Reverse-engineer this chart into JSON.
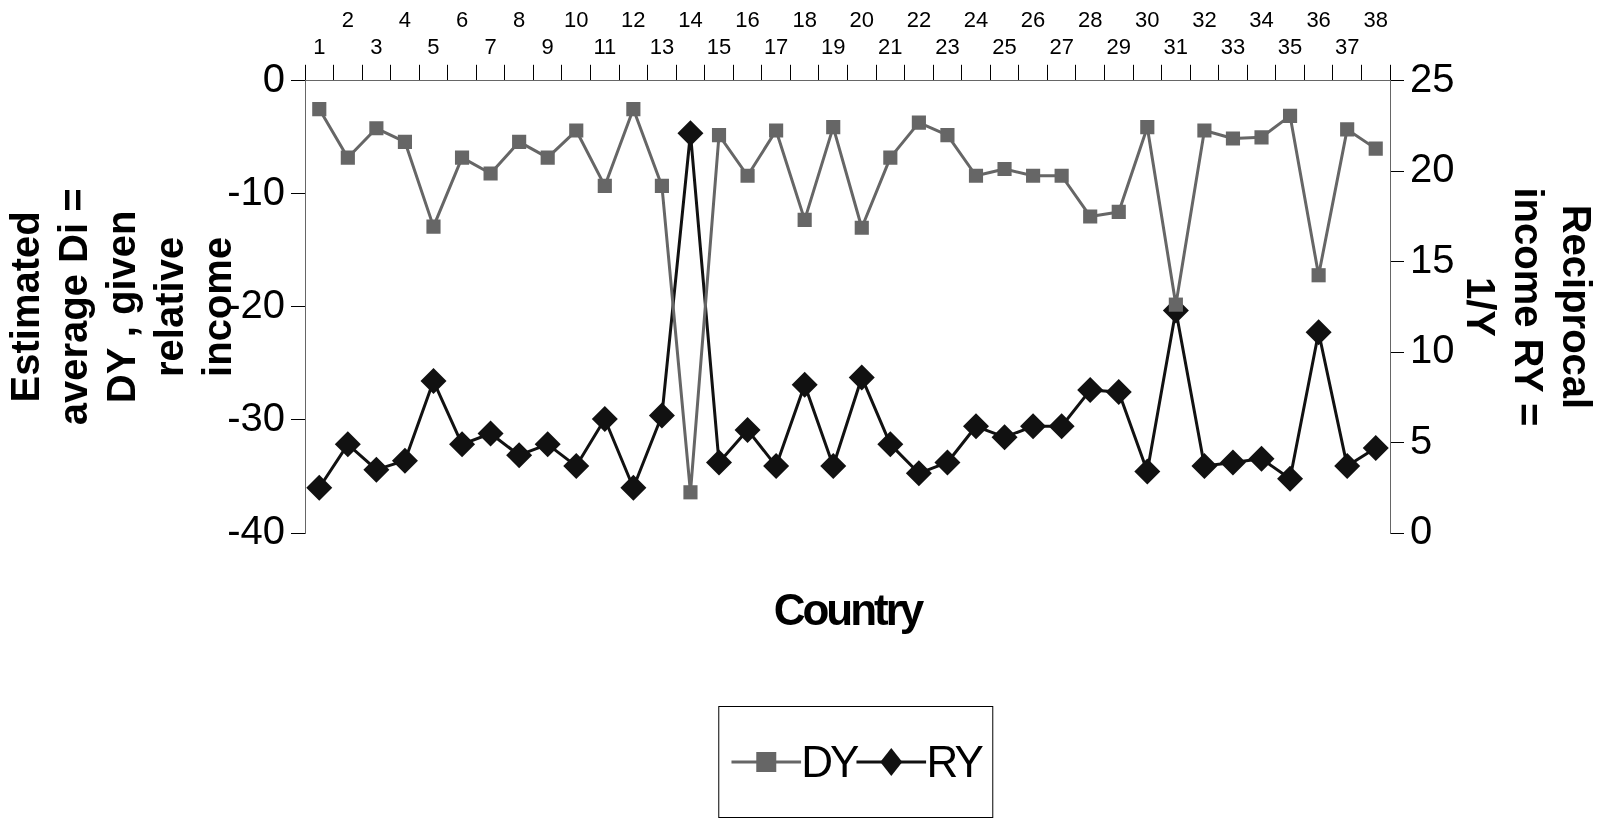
{
  "chart_data": {
    "type": "line",
    "xlabel": "Country",
    "ylabel": "Estimated average Di = DY , given relative income",
    "y2label": "Reciprocal income RY = 1/Y",
    "categories": [
      "1",
      "2",
      "3",
      "4",
      "5",
      "6",
      "7",
      "8",
      "9",
      "10",
      "11",
      "12",
      "13",
      "14",
      "15",
      "16",
      "17",
      "18",
      "19",
      "20",
      "21",
      "22",
      "23",
      "24",
      "25",
      "26",
      "27",
      "28",
      "29",
      "30",
      "31",
      "32",
      "33",
      "34",
      "35",
      "36",
      "37",
      "38"
    ],
    "series": [
      {
        "name": "DY",
        "color": "#666666",
        "marker": "square",
        "values": [
          -2.5,
          -6.8,
          -4.2,
          -5.4,
          -12.9,
          -6.8,
          -8.2,
          -5.4,
          -6.8,
          -4.4,
          -9.3,
          -2.5,
          -9.3,
          -36.4,
          -4.8,
          -8.4,
          -4.4,
          -12.3,
          -4.1,
          -13.0,
          -6.8,
          -3.7,
          -4.8,
          -8.4,
          -7.8,
          -8.4,
          -8.4,
          -12.0,
          -11.6,
          -4.1,
          -19.8,
          -4.4,
          -5.1,
          -5.0,
          -3.1,
          -17.2,
          -4.3,
          -6.0
        ]
      },
      {
        "name": "RY",
        "color": "#111111",
        "marker": "diamond",
        "axis": "y2",
        "values": [
          2.5,
          4.9,
          3.5,
          4.0,
          8.4,
          4.9,
          5.5,
          4.3,
          4.9,
          3.7,
          6.3,
          2.5,
          6.5,
          22.1,
          3.9,
          5.7,
          3.7,
          8.2,
          3.7,
          8.6,
          4.9,
          3.3,
          3.9,
          5.9,
          5.3,
          5.9,
          5.9,
          7.9,
          7.8,
          3.4,
          12.3,
          3.7,
          3.9,
          4.1,
          3.0,
          11.1,
          3.7,
          4.7
        ]
      }
    ],
    "ylim": [
      -40,
      0
    ],
    "yticks": [
      -40,
      -30,
      -20,
      -10,
      0
    ],
    "y2lim": [
      0,
      25
    ],
    "y2ticks": [
      0,
      5,
      10,
      15,
      20,
      25
    ],
    "grid": false,
    "legend": "bottom"
  }
}
